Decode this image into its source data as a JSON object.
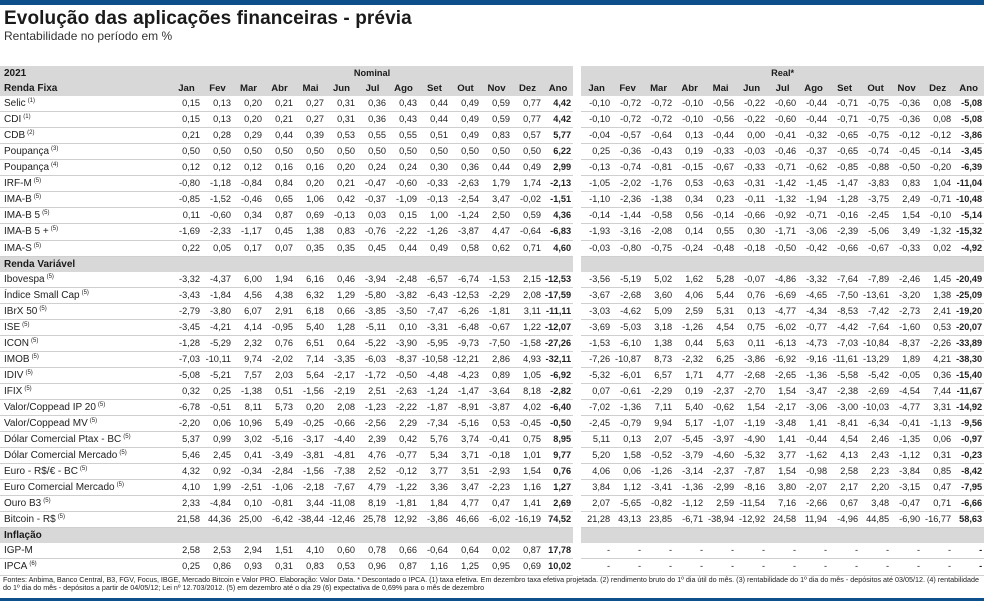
{
  "title": "Evolução das aplicações financeiras - prévia",
  "subtitle": "Rentabilidade no período em %",
  "year": "2021",
  "nominal_label": "Nominal",
  "real_label": "Real*",
  "months": [
    "Jan",
    "Fev",
    "Mar",
    "Abr",
    "Mai",
    "Jun",
    "Jul",
    "Ago",
    "Set",
    "Out",
    "Nov",
    "Dez",
    "Ano"
  ],
  "footer": "Fontes: Anbima, Banco Central, B3, FGV, Focus, IBGE, Mercado Bitcoin e Valor PRO. Elaboração: Valor Data. * Descontado o IPCA. (1) taxa efetiva. Em dezembro taxa efetiva projetada. (2) rendimento bruto do 1º dia útil do mês. (3) rentabilidade do 1º dia do mês - depósitos até 03/05/12. (4)  rentabilidade do 1º dia do mês - depósitos a partir de 04/05/12;  Lei nº 12.703/2012. (5) em dezembro  até o dia 29 (6) expectativa de 0,69% para o mês de dezembro",
  "groups": [
    {
      "name": "Renda Fixa",
      "rows": [
        {
          "label": "Selic",
          "note": "(1)",
          "nominal": [
            "0,15",
            "0,13",
            "0,20",
            "0,21",
            "0,27",
            "0,31",
            "0,36",
            "0,43",
            "0,44",
            "0,49",
            "0,59",
            "0,77",
            "4,42"
          ],
          "real": [
            "-0,10",
            "-0,72",
            "-0,72",
            "-0,10",
            "-0,56",
            "-0,22",
            "-0,60",
            "-0,44",
            "-0,71",
            "-0,75",
            "-0,36",
            "0,08",
            "-5,08"
          ]
        },
        {
          "label": "CDI",
          "note": "(1)",
          "nominal": [
            "0,15",
            "0,13",
            "0,20",
            "0,21",
            "0,27",
            "0,31",
            "0,36",
            "0,43",
            "0,44",
            "0,49",
            "0,59",
            "0,77",
            "4,42"
          ],
          "real": [
            "-0,10",
            "-0,72",
            "-0,72",
            "-0,10",
            "-0,56",
            "-0,22",
            "-0,60",
            "-0,44",
            "-0,71",
            "-0,75",
            "-0,36",
            "0,08",
            "-5,08"
          ]
        },
        {
          "label": "CDB",
          "note": "(2)",
          "nominal": [
            "0,21",
            "0,28",
            "0,29",
            "0,44",
            "0,39",
            "0,53",
            "0,55",
            "0,55",
            "0,51",
            "0,49",
            "0,83",
            "0,57",
            "5,77"
          ],
          "real": [
            "-0,04",
            "-0,57",
            "-0,64",
            "0,13",
            "-0,44",
            "0,00",
            "-0,41",
            "-0,32",
            "-0,65",
            "-0,75",
            "-0,12",
            "-0,12",
            "-3,86"
          ]
        },
        {
          "label": "Poupança",
          "note": "(3)",
          "nominal": [
            "0,50",
            "0,50",
            "0,50",
            "0,50",
            "0,50",
            "0,50",
            "0,50",
            "0,50",
            "0,50",
            "0,50",
            "0,50",
            "0,50",
            "6,22"
          ],
          "real": [
            "0,25",
            "-0,36",
            "-0,43",
            "0,19",
            "-0,33",
            "-0,03",
            "-0,46",
            "-0,37",
            "-0,65",
            "-0,74",
            "-0,45",
            "-0,14",
            "-3,45"
          ]
        },
        {
          "label": "Poupança",
          "note": "(4)",
          "nominal": [
            "0,12",
            "0,12",
            "0,12",
            "0,16",
            "0,16",
            "0,20",
            "0,24",
            "0,24",
            "0,30",
            "0,36",
            "0,44",
            "0,49",
            "2,99"
          ],
          "real": [
            "-0,13",
            "-0,74",
            "-0,81",
            "-0,15",
            "-0,67",
            "-0,33",
            "-0,71",
            "-0,62",
            "-0,85",
            "-0,88",
            "-0,50",
            "-0,20",
            "-6,39"
          ]
        },
        {
          "label": "IRF-M",
          "note": "(5)",
          "nominal": [
            "-0,80",
            "-1,18",
            "-0,84",
            "0,84",
            "0,20",
            "0,21",
            "-0,47",
            "-0,60",
            "-0,33",
            "-2,63",
            "1,79",
            "1,74",
            "-2,13"
          ],
          "real": [
            "-1,05",
            "-2,02",
            "-1,76",
            "0,53",
            "-0,63",
            "-0,31",
            "-1,42",
            "-1,45",
            "-1,47",
            "-3,83",
            "0,83",
            "1,04",
            "-11,04"
          ]
        },
        {
          "label": "IMA-B",
          "note": "(5)",
          "nominal": [
            "-0,85",
            "-1,52",
            "-0,46",
            "0,65",
            "1,06",
            "0,42",
            "-0,37",
            "-1,09",
            "-0,13",
            "-2,54",
            "3,47",
            "-0,02",
            "-1,51"
          ],
          "real": [
            "-1,10",
            "-2,36",
            "-1,38",
            "0,34",
            "0,23",
            "-0,11",
            "-1,32",
            "-1,94",
            "-1,28",
            "-3,75",
            "2,49",
            "-0,71",
            "-10,48"
          ]
        },
        {
          "label": "IMA-B 5",
          "note": "(5)",
          "nominal": [
            "0,11",
            "-0,60",
            "0,34",
            "0,87",
            "0,69",
            "-0,13",
            "0,03",
            "0,15",
            "1,00",
            "-1,24",
            "2,50",
            "0,59",
            "4,36"
          ],
          "real": [
            "-0,14",
            "-1,44",
            "-0,58",
            "0,56",
            "-0,14",
            "-0,66",
            "-0,92",
            "-0,71",
            "-0,16",
            "-2,45",
            "1,54",
            "-0,10",
            "-5,14"
          ]
        },
        {
          "label": "IMA-B 5 +",
          "note": "(5)",
          "nominal": [
            "-1,69",
            "-2,33",
            "-1,17",
            "0,45",
            "1,38",
            "0,83",
            "-0,76",
            "-2,22",
            "-1,26",
            "-3,87",
            "4,47",
            "-0,64",
            "-6,83"
          ],
          "real": [
            "-1,93",
            "-3,16",
            "-2,08",
            "0,14",
            "0,55",
            "0,30",
            "-1,71",
            "-3,06",
            "-2,39",
            "-5,06",
            "3,49",
            "-1,32",
            "-15,32"
          ]
        },
        {
          "label": "IMA-S",
          "note": "(5)",
          "nominal": [
            "0,22",
            "0,05",
            "0,17",
            "0,07",
            "0,35",
            "0,35",
            "0,45",
            "0,44",
            "0,49",
            "0,58",
            "0,62",
            "0,71",
            "4,60"
          ],
          "real": [
            "-0,03",
            "-0,80",
            "-0,75",
            "-0,24",
            "-0,48",
            "-0,18",
            "-0,50",
            "-0,42",
            "-0,66",
            "-0,67",
            "-0,33",
            "0,02",
            "-4,92"
          ]
        }
      ]
    },
    {
      "name": "Renda Variável",
      "rows": [
        {
          "label": "Ibovespa",
          "note": "(5)",
          "nominal": [
            "-3,32",
            "-4,37",
            "6,00",
            "1,94",
            "6,16",
            "0,46",
            "-3,94",
            "-2,48",
            "-6,57",
            "-6,74",
            "-1,53",
            "2,15",
            "-12,53"
          ],
          "real": [
            "-3,56",
            "-5,19",
            "5,02",
            "1,62",
            "5,28",
            "-0,07",
            "-4,86",
            "-3,32",
            "-7,64",
            "-7,89",
            "-2,46",
            "1,45",
            "-20,49"
          ]
        },
        {
          "label": "Índice Small Cap",
          "note": "(5)",
          "nominal": [
            "-3,43",
            "-1,84",
            "4,56",
            "4,38",
            "6,32",
            "1,29",
            "-5,80",
            "-3,82",
            "-6,43",
            "-12,53",
            "-2,29",
            "2,08",
            "-17,59"
          ],
          "real": [
            "-3,67",
            "-2,68",
            "3,60",
            "4,06",
            "5,44",
            "0,76",
            "-6,69",
            "-4,65",
            "-7,50",
            "-13,61",
            "-3,20",
            "1,38",
            "-25,09"
          ]
        },
        {
          "label": "IBrX 50",
          "note": "(5)",
          "nominal": [
            "-2,79",
            "-3,80",
            "6,07",
            "2,91",
            "6,18",
            "0,66",
            "-3,85",
            "-3,50",
            "-7,47",
            "-6,26",
            "-1,81",
            "3,11",
            "-11,11"
          ],
          "real": [
            "-3,03",
            "-4,62",
            "5,09",
            "2,59",
            "5,31",
            "0,13",
            "-4,77",
            "-4,34",
            "-8,53",
            "-7,42",
            "-2,73",
            "2,41",
            "-19,20"
          ]
        },
        {
          "label": "ISE",
          "note": "(5)",
          "nominal": [
            "-3,45",
            "-4,21",
            "4,14",
            "-0,95",
            "5,40",
            "1,28",
            "-5,11",
            "0,10",
            "-3,31",
            "-6,48",
            "-0,67",
            "1,22",
            "-12,07"
          ],
          "real": [
            "-3,69",
            "-5,03",
            "3,18",
            "-1,26",
            "4,54",
            "0,75",
            "-6,02",
            "-0,77",
            "-4,42",
            "-7,64",
            "-1,60",
            "0,53",
            "-20,07"
          ]
        },
        {
          "label": "ICON",
          "note": "(5)",
          "nominal": [
            "-1,28",
            "-5,29",
            "2,32",
            "0,76",
            "6,51",
            "0,64",
            "-5,22",
            "-3,90",
            "-5,95",
            "-9,73",
            "-7,50",
            "-1,58",
            "-27,26"
          ],
          "real": [
            "-1,53",
            "-6,10",
            "1,38",
            "0,44",
            "5,63",
            "0,11",
            "-6,13",
            "-4,73",
            "-7,03",
            "-10,84",
            "-8,37",
            "-2,26",
            "-33,89"
          ]
        },
        {
          "label": "IMOB",
          "note": "(5)",
          "nominal": [
            "-7,03",
            "-10,11",
            "9,74",
            "-2,02",
            "7,14",
            "-3,35",
            "-6,03",
            "-8,37",
            "-10,58",
            "-12,21",
            "2,86",
            "4,93",
            "-32,11"
          ],
          "real": [
            "-7,26",
            "-10,87",
            "8,73",
            "-2,32",
            "6,25",
            "-3,86",
            "-6,92",
            "-9,16",
            "-11,61",
            "-13,29",
            "1,89",
            "4,21",
            "-38,30"
          ]
        },
        {
          "label": "IDIV",
          "note": "(5)",
          "nominal": [
            "-5,08",
            "-5,21",
            "7,57",
            "2,03",
            "5,64",
            "-2,17",
            "-1,72",
            "-0,50",
            "-4,48",
            "-4,23",
            "0,89",
            "1,05",
            "-6,92"
          ],
          "real": [
            "-5,32",
            "-6,01",
            "6,57",
            "1,71",
            "4,77",
            "-2,68",
            "-2,65",
            "-1,36",
            "-5,58",
            "-5,42",
            "-0,05",
            "0,36",
            "-15,40"
          ]
        },
        {
          "label": "IFIX",
          "note": "(5)",
          "nominal": [
            "0,32",
            "0,25",
            "-1,38",
            "0,51",
            "-1,56",
            "-2,19",
            "2,51",
            "-2,63",
            "-1,24",
            "-1,47",
            "-3,64",
            "8,18",
            "-2,82"
          ],
          "real": [
            "0,07",
            "-0,61",
            "-2,29",
            "0,19",
            "-2,37",
            "-2,70",
            "1,54",
            "-3,47",
            "-2,38",
            "-2,69",
            "-4,54",
            "7,44",
            "-11,67"
          ]
        },
        {
          "label": "Valor/Coppead IP 20",
          "note": "(5)",
          "nominal": [
            "-6,78",
            "-0,51",
            "8,11",
            "5,73",
            "0,20",
            "2,08",
            "-1,23",
            "-2,22",
            "-1,87",
            "-8,91",
            "-3,87",
            "4,02",
            "-6,40"
          ],
          "real": [
            "-7,02",
            "-1,36",
            "7,11",
            "5,40",
            "-0,62",
            "1,54",
            "-2,17",
            "-3,06",
            "-3,00",
            "-10,03",
            "-4,77",
            "3,31",
            "-14,92"
          ]
        },
        {
          "label": "Valor/Coppead MV",
          "note": "(5)",
          "nominal": [
            "-2,20",
            "0,06",
            "10,96",
            "5,49",
            "-0,25",
            "-0,66",
            "-2,56",
            "2,29",
            "-7,34",
            "-5,16",
            "0,53",
            "-0,45",
            "-0,50"
          ],
          "real": [
            "-2,45",
            "-0,79",
            "9,94",
            "5,17",
            "-1,07",
            "-1,19",
            "-3,48",
            "1,41",
            "-8,41",
            "-6,34",
            "-0,41",
            "-1,13",
            "-9,56"
          ]
        },
        {
          "label": "Dólar Comercial Ptax - BC",
          "note": "(5)",
          "nominal": [
            "5,37",
            "0,99",
            "3,02",
            "-5,16",
            "-3,17",
            "-4,40",
            "2,39",
            "0,42",
            "5,76",
            "3,74",
            "-0,41",
            "0,75",
            "8,95"
          ],
          "real": [
            "5,11",
            "0,13",
            "2,07",
            "-5,45",
            "-3,97",
            "-4,90",
            "1,41",
            "-0,44",
            "4,54",
            "2,46",
            "-1,35",
            "0,06",
            "-0,97"
          ]
        },
        {
          "label": "Dólar Comercial Mercado",
          "note": "(5)",
          "nominal": [
            "5,46",
            "2,45",
            "0,41",
            "-3,49",
            "-3,81",
            "-4,81",
            "4,76",
            "-0,77",
            "5,34",
            "3,71",
            "-0,18",
            "1,01",
            "9,77"
          ],
          "real": [
            "5,20",
            "1,58",
            "-0,52",
            "-3,79",
            "-4,60",
            "-5,32",
            "3,77",
            "-1,62",
            "4,13",
            "2,43",
            "-1,12",
            "0,31",
            "-0,23"
          ]
        },
        {
          "label": "Euro - R$/€ - BC",
          "note": "(5)",
          "nominal": [
            "4,32",
            "0,92",
            "-0,34",
            "-2,84",
            "-1,56",
            "-7,38",
            "2,52",
            "-0,12",
            "3,77",
            "3,51",
            "-2,93",
            "1,54",
            "0,76"
          ],
          "real": [
            "4,06",
            "0,06",
            "-1,26",
            "-3,14",
            "-2,37",
            "-7,87",
            "1,54",
            "-0,98",
            "2,58",
            "2,23",
            "-3,84",
            "0,85",
            "-8,42"
          ]
        },
        {
          "label": "Euro Comercial Mercado",
          "note": "(5)",
          "nominal": [
            "4,10",
            "1,99",
            "-2,51",
            "-1,06",
            "-2,18",
            "-7,67",
            "4,79",
            "-1,22",
            "3,36",
            "3,47",
            "-2,23",
            "1,16",
            "1,27"
          ],
          "real": [
            "3,84",
            "1,12",
            "-3,41",
            "-1,36",
            "-2,99",
            "-8,16",
            "3,80",
            "-2,07",
            "2,17",
            "2,20",
            "-3,15",
            "0,47",
            "-7,95"
          ]
        },
        {
          "label": "Ouro B3",
          "note": "(5)",
          "nominal": [
            "2,33",
            "-4,84",
            "0,10",
            "-0,81",
            "3,44",
            "-11,08",
            "8,19",
            "-1,81",
            "1,84",
            "4,77",
            "0,47",
            "1,41",
            "2,69"
          ],
          "real": [
            "2,07",
            "-5,65",
            "-0,82",
            "-1,12",
            "2,59",
            "-11,54",
            "7,16",
            "-2,66",
            "0,67",
            "3,48",
            "-0,47",
            "0,71",
            "-6,66"
          ]
        },
        {
          "label": "Bitcoin - R$",
          "note": "(5)",
          "nominal": [
            "21,58",
            "44,36",
            "25,00",
            "-6,42",
            "-38,44",
            "-12,46",
            "25,78",
            "12,92",
            "-3,86",
            "46,66",
            "-6,02",
            "-16,19",
            "74,52"
          ],
          "real": [
            "21,28",
            "43,13",
            "23,85",
            "-6,71",
            "-38,94",
            "-12,92",
            "24,58",
            "11,94",
            "-4,96",
            "44,85",
            "-6,90",
            "-16,77",
            "58,63"
          ]
        }
      ]
    },
    {
      "name": "Inflação",
      "rows": [
        {
          "label": "IGP-M",
          "note": "",
          "nominal": [
            "2,58",
            "2,53",
            "2,94",
            "1,51",
            "4,10",
            "0,60",
            "0,78",
            "0,66",
            "-0,64",
            "0,64",
            "0,02",
            "0,87",
            "17,78"
          ],
          "real": [
            "-",
            "-",
            "-",
            "-",
            "-",
            "-",
            "-",
            "-",
            "-",
            "-",
            "-",
            "-",
            "-"
          ]
        },
        {
          "label": "IPCA",
          "note": "(6)",
          "nominal": [
            "0,25",
            "0,86",
            "0,93",
            "0,31",
            "0,83",
            "0,53",
            "0,96",
            "0,87",
            "1,16",
            "1,25",
            "0,95",
            "0,69",
            "10,02"
          ],
          "real": [
            "-",
            "-",
            "-",
            "-",
            "-",
            "-",
            "-",
            "-",
            "-",
            "-",
            "-",
            "-",
            "-"
          ]
        }
      ]
    }
  ]
}
